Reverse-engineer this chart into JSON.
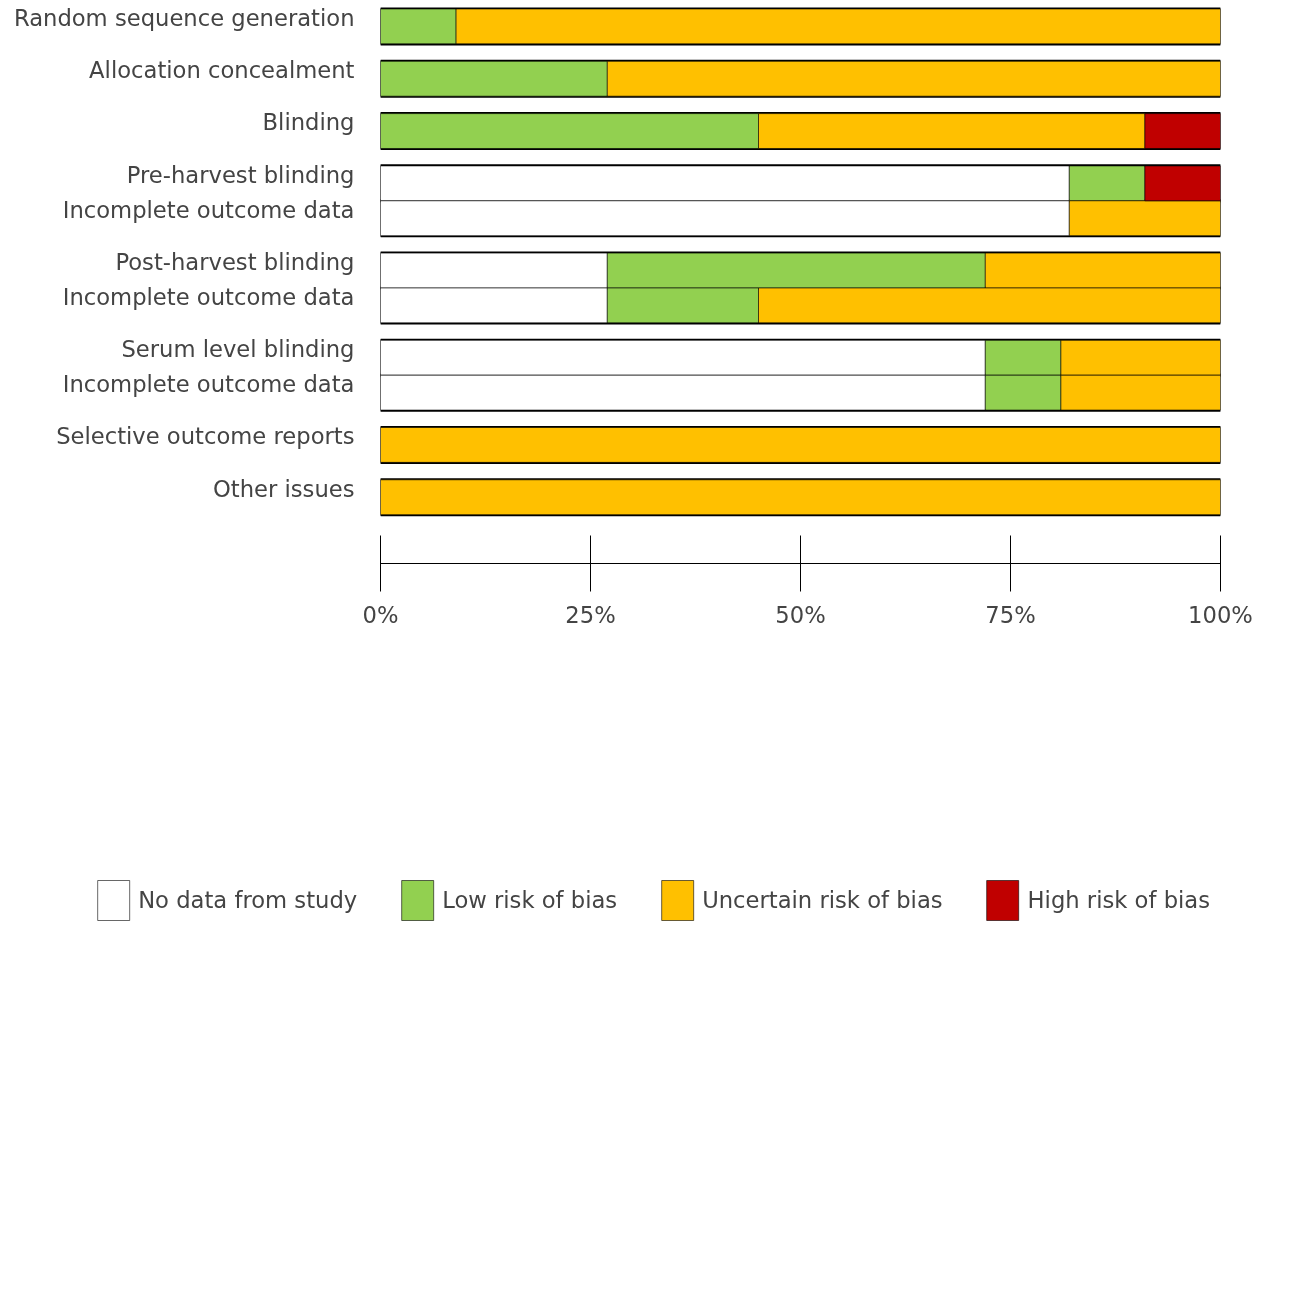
{
  "chart_data": {
    "type": "bar",
    "orientation": "horizontal",
    "stacked": true,
    "categories": [
      "Random sequence generation",
      "Allocation concealment",
      "Blinding",
      "Pre-harvest blinding",
      "Incomplete outcome data",
      "Post-harvest blinding",
      "Incomplete outcome data",
      "Serum level blinding",
      "Incomplete outcome data",
      "Selective outcome reports",
      "Other issues"
    ],
    "series": [
      {
        "name": "No data from study",
        "color": "#ffffff",
        "values": [
          0,
          0,
          0,
          82,
          82,
          27,
          27,
          72,
          72,
          0,
          0
        ]
      },
      {
        "name": "Low risk of bias",
        "color": "#92d050",
        "values": [
          9,
          27,
          45,
          9,
          0,
          45,
          18,
          9,
          9,
          0,
          0
        ]
      },
      {
        "name": "Uncertain risk of bias",
        "color": "#ffc000",
        "values": [
          91,
          73,
          46,
          0,
          18,
          28,
          55,
          19,
          19,
          100,
          100
        ]
      },
      {
        "name": "High risk of bias",
        "color": "#c00000",
        "values": [
          0,
          0,
          9,
          9,
          0,
          0,
          0,
          0,
          0,
          0,
          0
        ]
      }
    ],
    "xlim": [
      0,
      100
    ],
    "xticks": [
      {
        "value": 0,
        "label": "0%"
      },
      {
        "value": 25,
        "label": "25%"
      },
      {
        "value": 50,
        "label": "50%"
      },
      {
        "value": 75,
        "label": "75%"
      },
      {
        "value": 100,
        "label": "100%"
      }
    ],
    "grid": false,
    "legend": "bottom"
  }
}
